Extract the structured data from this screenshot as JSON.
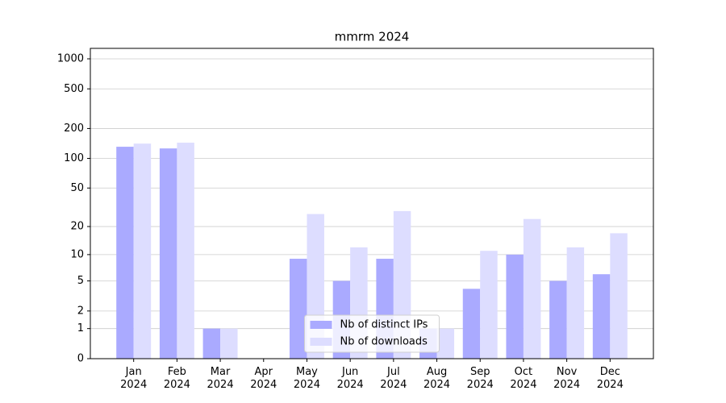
{
  "chart_data": {
    "type": "bar",
    "title": "mmrm 2024",
    "categories": [
      "Jan\n2024",
      "Feb\n2024",
      "Mar\n2024",
      "Apr\n2024",
      "May\n2024",
      "Jun\n2024",
      "Jul\n2024",
      "Aug\n2024",
      "Sep\n2024",
      "Oct\n2024",
      "Nov\n2024",
      "Dec\n2024"
    ],
    "series": [
      {
        "name": "Nb of distinct IPs",
        "color": "#aaaaff",
        "values": [
          131,
          126,
          1,
          0,
          9,
          5,
          9,
          1,
          4,
          10,
          5,
          6
        ]
      },
      {
        "name": "Nb of downloads",
        "color": "#ddddff",
        "values": [
          141,
          144,
          1,
          0,
          27,
          12,
          29,
          1,
          11,
          24,
          12,
          17
        ]
      }
    ],
    "yscale": "log1p",
    "ylim": [
      0,
      1273
    ],
    "yticks": [
      0,
      1,
      2,
      5,
      10,
      20,
      50,
      100,
      200,
      500,
      1000
    ],
    "grid": true,
    "legend": "lower center"
  }
}
